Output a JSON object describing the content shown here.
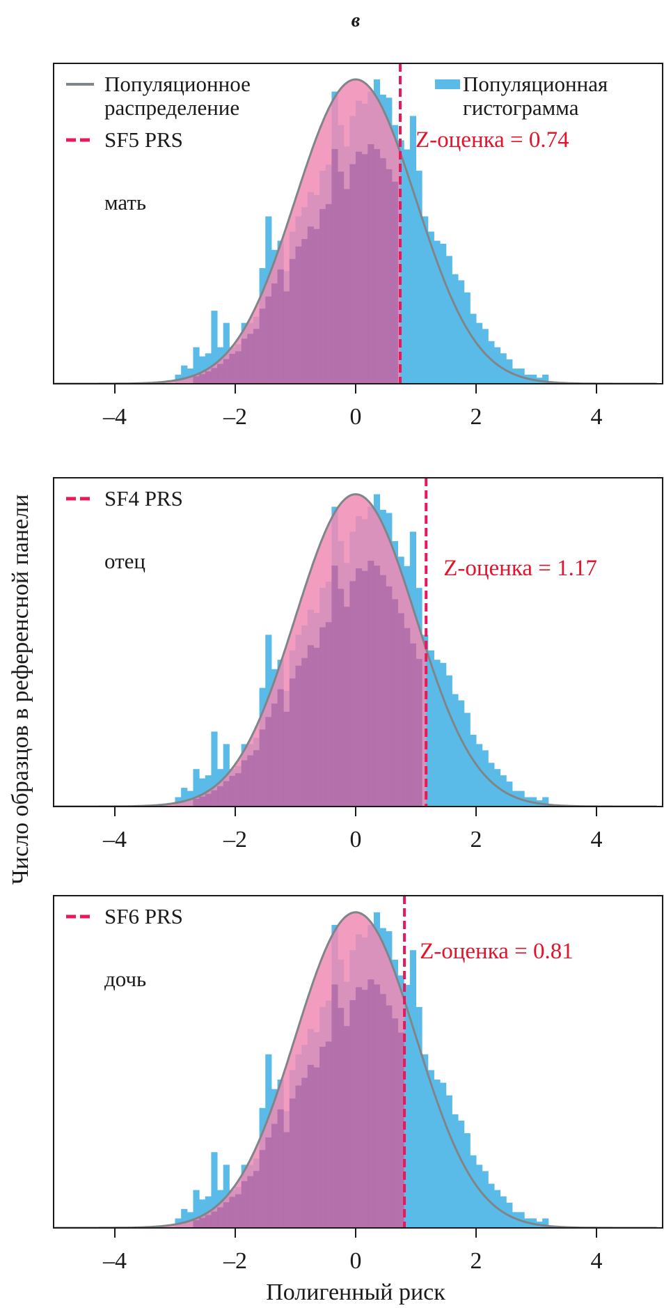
{
  "figure": {
    "panel_label": "в",
    "ylabel": "Число образцов в референсной панели",
    "xlabel": "Полигенный риск",
    "colors": {
      "histogram": "#5bbbe8",
      "sample_fill": "#f08bb4",
      "overlap": "#b06ea8",
      "curve": "#7f8589",
      "prs_line": "#e8185a",
      "zscore_text": "#e3132c",
      "axis": "#1a1a1a"
    },
    "legend": {
      "curve_label_line1": "Популяционное",
      "curve_label_line2": "распределение",
      "hist_label_line1": "Популяционная",
      "hist_label_line2": "гистограмма"
    }
  },
  "chart_data": [
    {
      "type": "bar",
      "subtype": "histogram-with-normal-curve",
      "panel": 1,
      "member": "мать",
      "prs_label": "SF5 PRS",
      "zscore_label": "Z-оценка = 0.74",
      "zscore": 0.74,
      "xlabel": "Полигенный риск",
      "ylabel": "Число образцов в референсной панели",
      "xlim": [
        -5,
        5
      ],
      "xticks": [
        -4,
        -2,
        0,
        2,
        4
      ],
      "xtick_labels": [
        "–4",
        "–2",
        "0",
        "2",
        "4"
      ],
      "yticks": [],
      "legend": [
        "Популяционное распределение",
        "SF5 PRS",
        "Популяционная гистограмма"
      ],
      "curve": {
        "type": "normal",
        "mean": 0,
        "sd": 1
      }
    },
    {
      "type": "bar",
      "subtype": "histogram-with-normal-curve",
      "panel": 2,
      "member": "отец",
      "prs_label": "SF4 PRS",
      "zscore_label": "Z-оценка = 1.17",
      "zscore": 1.17,
      "xlabel": "Полигенный риск",
      "ylabel": "Число образцов в референсной панели",
      "xlim": [
        -5,
        5
      ],
      "xticks": [
        -4,
        -2,
        0,
        2,
        4
      ],
      "xtick_labels": [
        "–4",
        "–2",
        "0",
        "2",
        "4"
      ],
      "yticks": [],
      "legend": [
        "SF4 PRS"
      ],
      "curve": {
        "type": "normal",
        "mean": 0,
        "sd": 1
      }
    },
    {
      "type": "bar",
      "subtype": "histogram-with-normal-curve",
      "panel": 3,
      "member": "дочь",
      "prs_label": "SF6 PRS",
      "zscore_label": "Z-оценка = 0.81",
      "zscore": 0.81,
      "xlabel": "Полигенный риск",
      "ylabel": "Число образцов в референсной панели",
      "xlim": [
        -5,
        5
      ],
      "xticks": [
        -4,
        -2,
        0,
        2,
        4
      ],
      "xtick_labels": [
        "–4",
        "–2",
        "0",
        "2",
        "4"
      ],
      "yticks": [],
      "legend": [
        "SF6 PRS"
      ],
      "curve": {
        "type": "normal",
        "mean": 0,
        "sd": 1
      }
    }
  ],
  "histogram_bins": {
    "bin_start": -3.0,
    "bin_width": 0.1,
    "relative_heights": [
      0.03,
      0.06,
      0.05,
      0.12,
      0.09,
      0.1,
      0.24,
      0.12,
      0.2,
      0.12,
      0.13,
      0.2,
      0.2,
      0.22,
      0.38,
      0.55,
      0.44,
      0.47,
      0.37,
      0.5,
      0.55,
      0.58,
      0.63,
      0.62,
      0.7,
      0.72,
      0.96,
      0.85,
      0.78,
      0.88,
      0.93,
      0.92,
      0.96,
      1.0,
      0.95,
      0.94,
      0.85,
      0.8,
      0.77,
      0.88,
      0.7,
      0.55,
      0.5,
      0.47,
      0.46,
      0.42,
      0.36,
      0.34,
      0.3,
      0.23,
      0.2,
      0.18,
      0.14,
      0.12,
      0.1,
      0.08,
      0.05,
      0.05,
      0.03,
      0.03,
      0.02,
      0.03
    ]
  }
}
